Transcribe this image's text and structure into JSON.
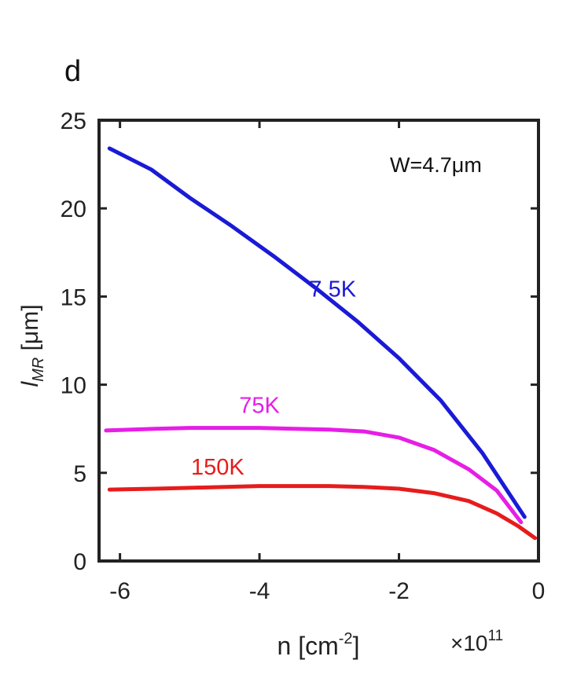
{
  "panel_label": "d",
  "annotation": "W=4.7μm",
  "chart_data": {
    "type": "line",
    "xlabel": {
      "main": "n [cm",
      "sup": "-2",
      "close": "]"
    },
    "ylabel": {
      "main": "l",
      "sub": "MR",
      "unit": " [μm]"
    },
    "x_multiplier": {
      "prefix": "×10",
      "exp": "11"
    },
    "xlim": [
      -6.3,
      0
    ],
    "ylim": [
      0,
      25
    ],
    "xticks": [
      -6,
      -4,
      -2,
      0
    ],
    "yticks": [
      0,
      5,
      10,
      15,
      20,
      25
    ],
    "grid": false,
    "series": [
      {
        "name": "7.5K",
        "color": "#1a1ad6",
        "x": [
          -6.15,
          -5.55,
          -5.0,
          -4.4,
          -3.8,
          -3.2,
          -2.6,
          -2.0,
          -1.4,
          -0.8,
          -0.2
        ],
        "y": [
          23.4,
          22.2,
          20.6,
          19.0,
          17.3,
          15.5,
          13.6,
          11.5,
          9.1,
          6.1,
          2.5
        ]
      },
      {
        "name": "75K",
        "color": "#e61ee6",
        "x": [
          -6.2,
          -5.5,
          -5.0,
          -4.5,
          -4.0,
          -3.5,
          -3.0,
          -2.5,
          -2.0,
          -1.5,
          -1.0,
          -0.6,
          -0.25
        ],
        "y": [
          7.4,
          7.5,
          7.55,
          7.55,
          7.55,
          7.5,
          7.45,
          7.35,
          7.0,
          6.3,
          5.2,
          4.0,
          2.2
        ]
      },
      {
        "name": "150K",
        "color": "#e61c1c",
        "x": [
          -6.15,
          -5.5,
          -5.0,
          -4.5,
          -4.0,
          -3.5,
          -3.0,
          -2.5,
          -2.0,
          -1.5,
          -1.0,
          -0.6,
          -0.3,
          -0.05
        ],
        "y": [
          4.05,
          4.1,
          4.15,
          4.2,
          4.25,
          4.25,
          4.25,
          4.2,
          4.1,
          3.85,
          3.4,
          2.7,
          2.0,
          1.3
        ]
      }
    ]
  }
}
